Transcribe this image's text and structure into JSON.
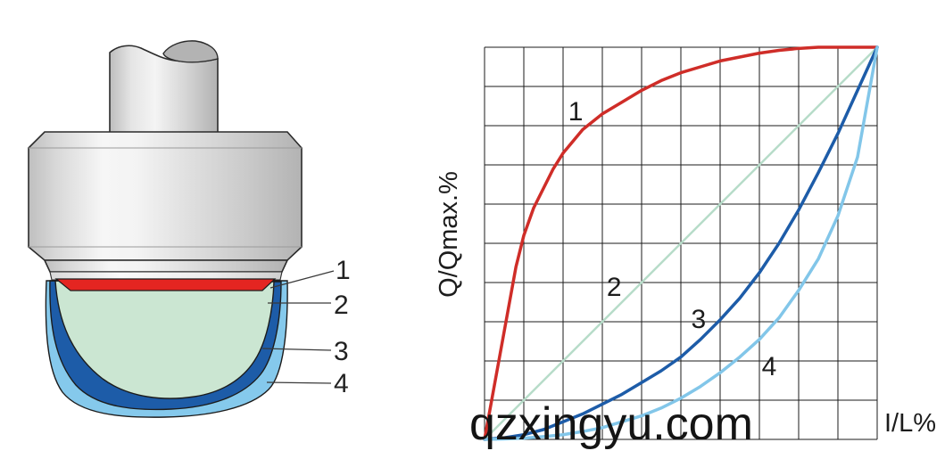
{
  "figure": {
    "labels": [
      "1",
      "2",
      "3",
      "4"
    ],
    "colors": {
      "profile_1_red": "#e42521",
      "profile_2_green": "#cbe6d2",
      "profile_3_dark_blue": "#1d5ca8",
      "profile_4_light_blue": "#85c9ec",
      "metal_highlight": "#f6f6f6",
      "metal_shadow": "#b3b3b3",
      "outline": "#1c1c1c"
    }
  },
  "chart_data": {
    "type": "line",
    "title": "",
    "xlabel": "I/L%",
    "ylabel": "Q/Qmax.%",
    "xlim": [
      0,
      100
    ],
    "ylim": [
      0,
      100
    ],
    "grid": true,
    "grid_divisions": 10,
    "grid_color": "#1b1b1b",
    "legend_position": "none",
    "series": [
      {
        "name": "1",
        "color": "#cf2d28",
        "stroke_width": 3.5,
        "label_pos": [
          23.2,
          81.4
        ],
        "points": [
          [
            0,
            0
          ],
          [
            2,
            11
          ],
          [
            4,
            22
          ],
          [
            6,
            33
          ],
          [
            8,
            44
          ],
          [
            10,
            52
          ],
          [
            12.5,
            59
          ],
          [
            15,
            64
          ],
          [
            17.5,
            69
          ],
          [
            20,
            73
          ],
          [
            25,
            79
          ],
          [
            30,
            83
          ],
          [
            35,
            86
          ],
          [
            40,
            89
          ],
          [
            45,
            91.5
          ],
          [
            50,
            93.5
          ],
          [
            55,
            95
          ],
          [
            60,
            96.5
          ],
          [
            65,
            97.5
          ],
          [
            70,
            98.5
          ],
          [
            75,
            99.2
          ],
          [
            80,
            99.7
          ],
          [
            85,
            100
          ],
          [
            90,
            100
          ],
          [
            100,
            100
          ]
        ]
      },
      {
        "name": "2",
        "color": "#b7dcc9",
        "stroke_width": 2.5,
        "label_pos": [
          33,
          36.6
        ],
        "points": [
          [
            0,
            0
          ],
          [
            25,
            25
          ],
          [
            50,
            50
          ],
          [
            75,
            75
          ],
          [
            100,
            100
          ]
        ]
      },
      {
        "name": "3",
        "color": "#1d5ca8",
        "stroke_width": 3.5,
        "label_pos": [
          54.5,
          28.4
        ],
        "points": [
          [
            0,
            0
          ],
          [
            5,
            0.4
          ],
          [
            10,
            1.2
          ],
          [
            15,
            2.5
          ],
          [
            20,
            4.5
          ],
          [
            25,
            6.5
          ],
          [
            30,
            9
          ],
          [
            35,
            11.5
          ],
          [
            40,
            14.5
          ],
          [
            45,
            17.5
          ],
          [
            50,
            21
          ],
          [
            55,
            25.5
          ],
          [
            60,
            30.5
          ],
          [
            65,
            36
          ],
          [
            70,
            42.5
          ],
          [
            75,
            50
          ],
          [
            80,
            58.5
          ],
          [
            85,
            68
          ],
          [
            90,
            78
          ],
          [
            95,
            89
          ],
          [
            100,
            100
          ]
        ]
      },
      {
        "name": "4",
        "color": "#82c6e9",
        "stroke_width": 3.5,
        "label_pos": [
          72.5,
          16.4
        ],
        "points": [
          [
            0,
            0
          ],
          [
            5,
            0.1
          ],
          [
            10,
            0.3
          ],
          [
            15,
            0.7
          ],
          [
            20,
            1.2
          ],
          [
            25,
            2
          ],
          [
            30,
            3
          ],
          [
            35,
            4.5
          ],
          [
            40,
            6
          ],
          [
            45,
            8
          ],
          [
            50,
            10.5
          ],
          [
            55,
            13.5
          ],
          [
            60,
            17
          ],
          [
            65,
            21
          ],
          [
            70,
            25.5
          ],
          [
            75,
            31
          ],
          [
            80,
            38
          ],
          [
            85,
            46
          ],
          [
            90,
            57
          ],
          [
            95,
            72
          ],
          [
            100,
            100
          ]
        ]
      }
    ]
  },
  "watermark": {
    "text": "qzxingyu.com"
  }
}
